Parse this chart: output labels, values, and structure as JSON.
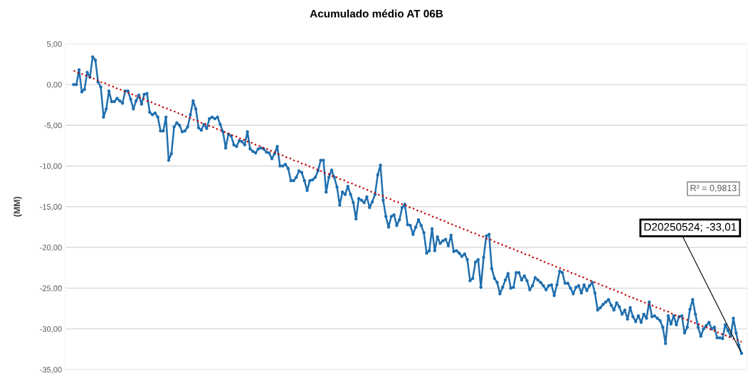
{
  "chart_data": {
    "type": "line",
    "title": "Acumulado médio AT 06B",
    "ylabel": "(MM)",
    "categories": [
      null,
      null,
      null,
      null,
      null,
      null,
      null,
      null,
      null,
      null,
      null,
      null,
      null,
      null,
      null,
      null,
      null,
      null,
      null,
      null,
      null,
      null,
      null,
      null,
      null,
      null,
      null,
      null,
      null,
      null,
      null,
      null,
      null,
      null,
      null,
      null,
      null,
      null,
      null,
      null,
      null,
      null,
      null,
      null,
      null,
      null,
      null,
      null,
      null,
      null,
      null,
      null,
      null,
      null,
      null,
      null,
      null,
      null,
      null,
      null,
      null,
      null,
      null,
      null,
      null,
      null,
      null,
      null,
      null,
      null,
      null,
      null,
      null,
      null,
      null,
      null,
      null,
      null,
      null,
      null,
      null,
      null,
      null,
      null,
      null,
      null,
      null,
      null,
      null,
      null,
      null,
      null,
      null,
      null,
      null,
      null,
      null,
      null,
      null,
      null,
      null,
      null,
      null,
      null,
      null,
      null,
      null,
      null,
      null,
      null,
      null,
      null,
      null,
      null,
      null,
      null,
      null,
      null,
      null,
      null,
      null,
      null,
      null,
      null,
      null,
      null,
      null,
      null,
      null,
      null,
      null,
      null,
      null,
      null,
      null,
      null,
      null,
      null,
      null,
      null,
      null,
      null,
      null,
      null,
      null,
      null,
      null,
      null,
      null,
      null,
      null,
      null,
      null,
      null,
      null,
      null,
      null,
      null,
      null,
      null,
      null,
      null,
      null,
      null,
      null,
      null,
      null,
      null,
      null,
      null,
      null,
      null,
      null,
      null,
      null,
      null,
      null,
      null,
      null,
      null,
      null,
      null,
      null,
      null,
      null,
      null,
      null,
      null,
      null,
      null,
      null,
      null,
      null,
      null,
      null,
      null,
      null,
      null,
      null,
      null,
      null,
      null,
      null,
      null,
      null,
      null,
      null,
      null,
      null,
      null,
      null,
      null,
      null,
      null,
      null,
      null,
      null,
      null,
      null,
      null,
      null,
      null,
      null,
      null,
      null,
      null,
      null,
      null,
      null,
      null,
      null,
      null,
      null,
      null,
      null,
      null,
      null,
      null,
      null,
      null,
      null,
      null,
      null,
      null,
      null,
      null,
      null
    ],
    "series": [
      {
        "color": "#1f6faf",
        "marker": "circle",
        "line_style": "solid",
        "values": [
          0.0,
          0.0,
          1.8,
          -0.9,
          -0.6,
          1.5,
          0.9,
          3.4,
          3.0,
          0.3,
          -0.3,
          -4.0,
          -3.0,
          -0.8,
          -2.1,
          -2.1,
          -1.7,
          -2.0,
          -2.3,
          -0.8,
          -0.8,
          -1.8,
          -3.0,
          -2.0,
          -1.3,
          -2.4,
          -1.2,
          -1.1,
          -3.4,
          -3.7,
          -3.5,
          -4.0,
          -5.7,
          -5.7,
          -4.0,
          -9.3,
          -8.5,
          -5.2,
          -4.7,
          -5.0,
          -5.8,
          -5.7,
          -5.2,
          -3.7,
          -2.0,
          -3.0,
          -5.3,
          -5.6,
          -4.9,
          -5.4,
          -4.2,
          -4.0,
          -4.2,
          -4.0,
          -4.9,
          -5.8,
          -7.8,
          -6.1,
          -6.3,
          -7.4,
          -7.6,
          -6.9,
          -7.0,
          -7.4,
          -5.8,
          -7.9,
          -8.2,
          -8.4,
          -7.9,
          -7.8,
          -7.9,
          -8.3,
          -8.4,
          -9.1,
          -8.5,
          -7.6,
          -10.0,
          -10.0,
          -9.8,
          -10.3,
          -11.8,
          -11.8,
          -11.4,
          -10.6,
          -10.8,
          -11.8,
          -13.0,
          -11.8,
          -11.7,
          -11.4,
          -10.6,
          -9.3,
          -9.3,
          -13.2,
          -11.4,
          -10.5,
          -11.4,
          -12.6,
          -14.8,
          -13.2,
          -13.5,
          -12.5,
          -13.5,
          -14.5,
          -16.5,
          -14.0,
          -14.2,
          -14.5,
          -13.8,
          -15.1,
          -14.4,
          -13.5,
          -11.1,
          -9.9,
          -14.2,
          -16.2,
          -17.5,
          -16.2,
          -16.0,
          -17.3,
          -16.6,
          -15.1,
          -14.7,
          -17.2,
          -17.3,
          -18.4,
          -17.5,
          -16.6,
          -17.3,
          -18.2,
          -20.7,
          -20.4,
          -17.7,
          -20.4,
          -18.7,
          -19.5,
          -19.2,
          -19.0,
          -19.8,
          -18.5,
          -20.5,
          -20.4,
          -20.7,
          -21.1,
          -20.8,
          -21.5,
          -24.1,
          -23.8,
          -21.8,
          -21.5,
          -24.9,
          -21.2,
          -18.6,
          -18.4,
          -22.6,
          -23.8,
          -24.3,
          -25.7,
          -24.9,
          -24.0,
          -23.2,
          -25.0,
          -24.9,
          -23.1,
          -23.1,
          -24.0,
          -23.5,
          -24.1,
          -25.2,
          -24.7,
          -23.7,
          -24.0,
          -24.3,
          -24.7,
          -25.2,
          -24.7,
          -24.6,
          -25.9,
          -24.6,
          -22.9,
          -23.1,
          -24.4,
          -24.4,
          -25.0,
          -25.7,
          -24.9,
          -24.7,
          -25.6,
          -24.6,
          -25.3,
          -24.7,
          -24.3,
          -25.6,
          -27.7,
          -27.4,
          -27.0,
          -26.7,
          -26.4,
          -27.1,
          -27.7,
          -26.8,
          -27.3,
          -28.2,
          -27.7,
          -28.8,
          -27.4,
          -28.5,
          -29.1,
          -28.4,
          -29.2,
          -28.2,
          -28.7,
          -26.7,
          -28.5,
          -28.4,
          -28.7,
          -29.0,
          -29.8,
          -31.8,
          -28.4,
          -29.4,
          -28.4,
          -29.5,
          -28.5,
          -28.4,
          -30.5,
          -29.8,
          -27.6,
          -26.4,
          -28.2,
          -29.8,
          -30.9,
          -30.0,
          -29.6,
          -29.2,
          -30.0,
          -29.8,
          -31.1,
          -31.1,
          -31.2,
          -29.5,
          -30.2,
          -30.9,
          -28.7,
          -30.5,
          -32.0,
          -33.01
        ]
      },
      {
        "color": "#c00000",
        "marker": "none",
        "line_style": "dotted",
        "values": [
          1.7,
          1.6,
          1.4,
          1.3,
          1.2,
          1.0,
          0.9,
          0.8,
          0.6,
          0.5,
          0.3,
          0.2,
          0.1,
          -0.1,
          -0.2,
          -0.3,
          -0.5,
          -0.6,
          -0.7,
          -0.9,
          -1.0,
          -1.1,
          -1.3,
          -1.4,
          -1.5,
          -1.7,
          -1.8,
          -2.0,
          -2.1,
          -2.2,
          -2.4,
          -2.5,
          -2.6,
          -2.8,
          -2.9,
          -3.0,
          -3.2,
          -3.3,
          -3.4,
          -3.6,
          -3.7,
          -3.9,
          -4.0,
          -4.1,
          -4.3,
          -4.4,
          -4.5,
          -4.7,
          -4.8,
          -4.9,
          -5.1,
          -5.2,
          -5.3,
          -5.5,
          -5.6,
          -5.7,
          -5.9,
          -6.0,
          -6.2,
          -6.3,
          -6.4,
          -6.6,
          -6.7,
          -6.8,
          -7.0,
          -7.1,
          -7.2,
          -7.4,
          -7.5,
          -7.6,
          -7.8,
          -7.9,
          -8.0,
          -8.2,
          -8.3,
          -8.5,
          -8.6,
          -8.7,
          -8.9,
          -9.0,
          -9.1,
          -9.3,
          -9.4,
          -9.5,
          -9.7,
          -9.8,
          -9.9,
          -10.1,
          -10.2,
          -10.3,
          -10.5,
          -10.6,
          -10.8,
          -10.9,
          -11.0,
          -11.2,
          -11.3,
          -11.4,
          -11.6,
          -11.7,
          -11.8,
          -12.0,
          -12.1,
          -12.2,
          -12.4,
          -12.5,
          -12.6,
          -12.8,
          -12.9,
          -13.1,
          -13.2,
          -13.3,
          -13.5,
          -13.6,
          -13.7,
          -13.9,
          -14.0,
          -14.1,
          -14.3,
          -14.4,
          -14.5,
          -14.7,
          -14.8,
          -15.0,
          -15.1,
          -15.2,
          -15.4,
          -15.5,
          -15.6,
          -15.8,
          -15.9,
          -16.0,
          -16.2,
          -16.3,
          -16.4,
          -16.6,
          -16.7,
          -16.8,
          -17.0,
          -17.1,
          -17.3,
          -17.4,
          -17.5,
          -17.7,
          -17.8,
          -17.9,
          -18.1,
          -18.2,
          -18.3,
          -18.5,
          -18.6,
          -18.7,
          -18.9,
          -19.0,
          -19.1,
          -19.3,
          -19.4,
          -19.6,
          -19.7,
          -19.8,
          -20.0,
          -20.1,
          -20.2,
          -20.4,
          -20.5,
          -20.6,
          -20.8,
          -20.9,
          -21.0,
          -21.2,
          -21.3,
          -21.4,
          -21.6,
          -21.7,
          -21.9,
          -22.0,
          -22.1,
          -22.3,
          -22.4,
          -22.5,
          -22.7,
          -22.8,
          -22.9,
          -23.1,
          -23.2,
          -23.3,
          -23.5,
          -23.6,
          -23.7,
          -23.9,
          -24.0,
          -24.2,
          -24.3,
          -24.4,
          -24.6,
          -24.7,
          -24.8,
          -25.0,
          -25.1,
          -25.2,
          -25.4,
          -25.5,
          -25.6,
          -25.8,
          -25.9,
          -26.1,
          -26.2,
          -26.3,
          -26.5,
          -26.6,
          -26.7,
          -26.9,
          -27.0,
          -27.1,
          -27.3,
          -27.4,
          -27.5,
          -27.7,
          -27.8,
          -27.9,
          -28.1,
          -28.2,
          -28.4,
          -28.5,
          -28.6,
          -28.8,
          -28.9,
          -29.0,
          -29.2,
          -29.3,
          -29.4,
          -29.6,
          -29.7,
          -29.8,
          -30.0,
          -30.1,
          -30.2,
          -30.4,
          -30.5,
          -30.7,
          -30.8,
          -30.9,
          -31.1,
          -31.2,
          -31.3,
          -31.5,
          -31.6
        ]
      }
    ],
    "ylim": [
      -35,
      5
    ],
    "yticks": [
      {
        "value": 5,
        "label": "5,00"
      },
      {
        "value": 0,
        "label": "0,00"
      },
      {
        "value": -5,
        "label": "-5,00"
      },
      {
        "value": -10,
        "label": "-10,00"
      },
      {
        "value": -15,
        "label": "-15,00"
      },
      {
        "value": -20,
        "label": "-20,00"
      },
      {
        "value": -25,
        "label": "-25,00"
      },
      {
        "value": -30,
        "label": "-30,00"
      },
      {
        "value": -35,
        "label": "-35,00"
      }
    ],
    "grid": "y",
    "legend": false,
    "annotations": [
      "R² = 0,9813",
      "D20250524; -33,01"
    ]
  }
}
